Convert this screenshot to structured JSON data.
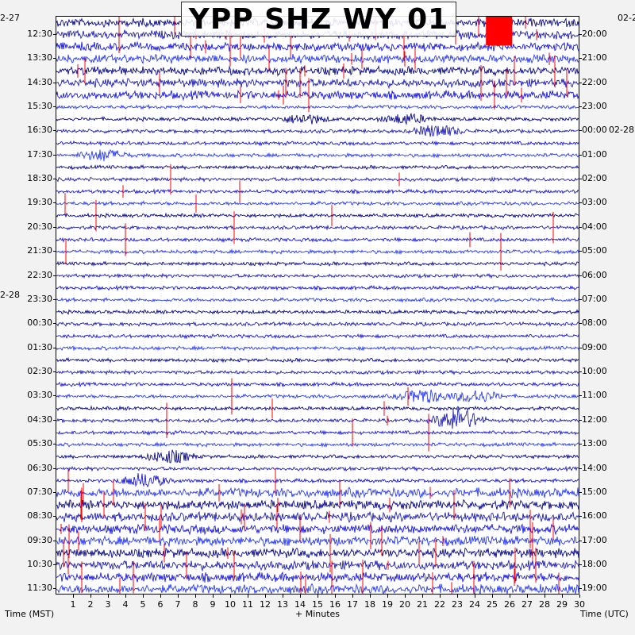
{
  "chart_data": {
    "type": "helicorder",
    "title": "YPP SHZ WY 01",
    "xlabel": "+ Minutes",
    "left_axis_label": "Time (MST)",
    "right_axis_label": "Time (UTC)",
    "x_ticks": [
      "1",
      "2",
      "3",
      "4",
      "5",
      "6",
      "7",
      "8",
      "9",
      "10",
      "11",
      "12",
      "13",
      "14",
      "15",
      "16",
      "17",
      "18",
      "19",
      "20",
      "21",
      "22",
      "23",
      "24",
      "25",
      "26",
      "27",
      "28",
      "29",
      "30"
    ],
    "xlim": [
      0,
      30
    ],
    "line_minutes": 30,
    "line_count": 48,
    "left_date_labels": [
      {
        "text": "2-27",
        "line": 0
      },
      {
        "text": "2-28",
        "line": 23
      }
    ],
    "right_date_labels": [
      {
        "text": "02-2",
        "line": 0
      },
      {
        "text": "02-28",
        "line": 9
      }
    ],
    "left_time_labels": [
      "12:30",
      "13:30",
      "14:30",
      "15:30",
      "16:30",
      "17:30",
      "18:30",
      "19:30",
      "20:30",
      "21:30",
      "22:30",
      "23:30",
      "00:30",
      "01:30",
      "02:30",
      "03:30",
      "04:30",
      "05:30",
      "06:30",
      "07:30",
      "08:30",
      "09:30",
      "10:30",
      "11:30"
    ],
    "right_time_labels": [
      "20:00",
      "21:00",
      "22:00",
      "23:00",
      "00:00",
      "01:00",
      "02:00",
      "03:00",
      "04:00",
      "05:00",
      "06:00",
      "07:00",
      "08:00",
      "09:00",
      "10:00",
      "11:00",
      "12:00",
      "13:00",
      "14:00",
      "15:00",
      "16:00",
      "17:00",
      "18:00",
      "19:00"
    ],
    "trace_colors": [
      "#0a0a8c",
      "#1f1fb8",
      "#1a1ae0",
      "#2b3df5"
    ],
    "clip_color": "#ff0000",
    "saturated_block": {
      "color": "#ff0000",
      "lines": [
        0,
        1
      ],
      "minutes": [
        24.6,
        26.1
      ]
    },
    "events": [
      {
        "line": 11,
        "minute": 2.7,
        "amp": 1.4
      },
      {
        "line": 8,
        "minute": 14.2,
        "amp": 1.2
      },
      {
        "line": 8,
        "minute": 20.0,
        "amp": 1.3
      },
      {
        "line": 9,
        "minute": 21.8,
        "amp": 1.6
      },
      {
        "line": 31,
        "minute": 21.0,
        "amp": 1.8
      },
      {
        "line": 31,
        "minute": 24.0,
        "amp": 1.6
      },
      {
        "line": 33,
        "minute": 23.0,
        "amp": 3.0
      },
      {
        "line": 36,
        "minute": 6.5,
        "amp": 1.6
      },
      {
        "line": 38,
        "minute": 5.0,
        "amp": 1.8
      }
    ],
    "noise_profile": {
      "high_lines_start": [
        0,
        6
      ],
      "quiet_lines": [
        10,
        38
      ],
      "high_lines_end": [
        39,
        47
      ]
    }
  }
}
